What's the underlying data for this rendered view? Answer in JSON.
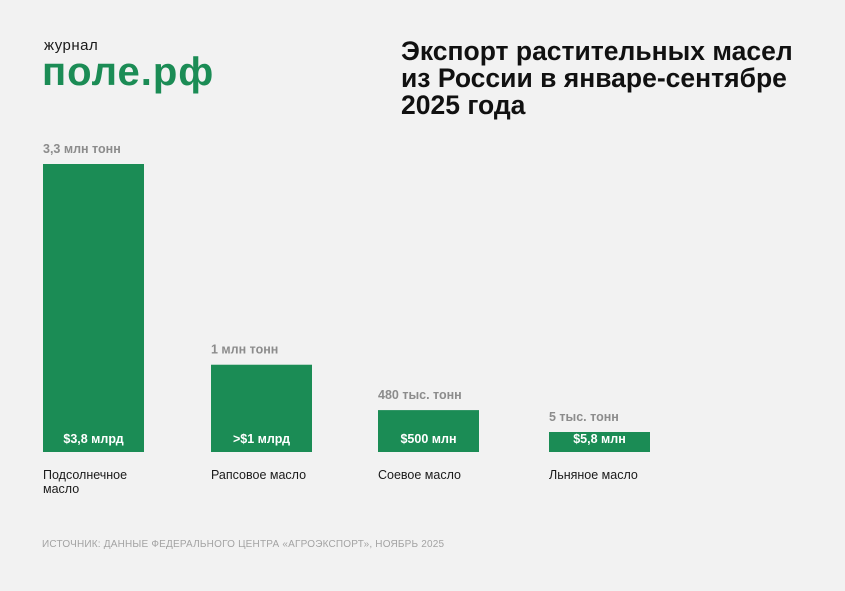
{
  "logo": {
    "small": "журнал",
    "big": "поле.рф",
    "color": "#1b8c55"
  },
  "title": "Экспорт растительных масел\nиз России в январе-сентябре\n2025 года",
  "chart_data": {
    "type": "bar",
    "title": "Экспорт растительных масел из России в январе-сентябре 2025 года",
    "categories": [
      "Подсолнечное масло",
      "Рапсовое масло",
      "Соевое масло",
      "Льняное масло"
    ],
    "values": [
      3300,
      1000,
      480,
      5
    ],
    "unit": "тыс. тонн",
    "value_labels": [
      "3,3 млн тонн",
      "1 млн тонн",
      "480 тыс. тонн",
      "5 тыс. тонн"
    ],
    "bar_labels": [
      "$3,8 млрд",
      ">$1 млрд",
      "$500 млн",
      "$5,8 млн"
    ],
    "category_lines": [
      [
        "Подсолнечное",
        "масло"
      ],
      [
        "Рапсовое масло"
      ],
      [
        "Соевое масло"
      ],
      [
        "Льняное масло"
      ]
    ],
    "bar_color": "#1b8c55",
    "value_label_color": "#8c8c8c",
    "ylim": [
      0,
      3300
    ],
    "grid": false,
    "legend": "none"
  },
  "source": "ИСТОЧНИК: ДАННЫЕ ФЕДЕРАЛЬНОГО ЦЕНТРА «АГРОЭКСПОРТ», НОЯБРЬ 2025"
}
